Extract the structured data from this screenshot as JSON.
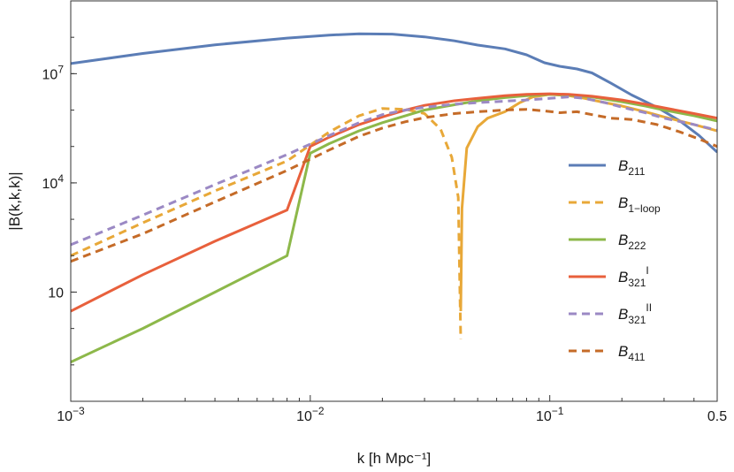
{
  "chart_data": {
    "type": "line",
    "title": "",
    "xlabel": "k [h Mpc⁻¹]",
    "ylabel": "|B(k,k,k)|",
    "xscale": "log",
    "yscale": "log",
    "xlim": [
      0.001,
      0.5
    ],
    "ylim": [
      0.01,
      1000000000
    ],
    "xticks": [
      {
        "value": 0.001,
        "base": "10",
        "exp": "−3"
      },
      {
        "value": 0.01,
        "base": "10",
        "exp": "−2"
      },
      {
        "value": 0.1,
        "base": "10",
        "exp": "−1"
      },
      {
        "value": 0.5,
        "base": "0.5",
        "exp": ""
      }
    ],
    "yticks": [
      {
        "value": 10,
        "base": "10",
        "exp": ""
      },
      {
        "value": 10000,
        "base": "10",
        "exp": "4"
      },
      {
        "value": 10000000,
        "base": "10",
        "exp": "7"
      }
    ],
    "legend_position": "center-right",
    "series": [
      {
        "name": "B211",
        "label_main": "B",
        "label_sub": "211",
        "label_sup": "",
        "color": "#5b7db6",
        "dash": false,
        "points": [
          [
            0.001,
            19000000.0
          ],
          [
            0.002,
            36000000.0
          ],
          [
            0.004,
            62000000.0
          ],
          [
            0.008,
            95000000.0
          ],
          [
            0.012,
            115000000.0
          ],
          [
            0.016,
            124000000.0
          ],
          [
            0.022,
            122000000.0
          ],
          [
            0.03,
            103000000.0
          ],
          [
            0.04,
            80000000.0
          ],
          [
            0.05,
            61000000.0
          ],
          [
            0.065,
            48000000.0
          ],
          [
            0.08,
            33000000.0
          ],
          [
            0.095,
            20000000.0
          ],
          [
            0.11,
            16000000.0
          ],
          [
            0.13,
            13500000.0
          ],
          [
            0.15,
            10500000.0
          ],
          [
            0.18,
            5500000.0
          ],
          [
            0.22,
            2600000.0
          ],
          [
            0.28,
            1200000.0
          ],
          [
            0.35,
            500000.0
          ],
          [
            0.42,
            200000.0
          ],
          [
            0.5,
            70000.0
          ]
        ]
      },
      {
        "name": "B1-loop",
        "label_main": "B",
        "label_sub": "1−loop",
        "label_sup": "",
        "color": "#e8a838",
        "dash": true,
        "points": [
          [
            0.001,
            100.0
          ],
          [
            0.002,
            800.0
          ],
          [
            0.004,
            6000.0
          ],
          [
            0.008,
            40000.0
          ],
          [
            0.012,
            250000.0
          ],
          [
            0.016,
            700000.0
          ],
          [
            0.02,
            1100000.0
          ],
          [
            0.025,
            1050000.0
          ],
          [
            0.03,
            800000.0
          ],
          [
            0.035,
            300000.0
          ],
          [
            0.039,
            50000.0
          ],
          [
            0.0415,
            4000.0
          ],
          [
            0.0425,
            0.5
          ]
        ]
      },
      {
        "name": "B1-loop",
        "label_main": "B",
        "label_sub": "1−loop",
        "label_sup": "",
        "color": "#e8a838",
        "dash": false,
        "legend": false,
        "points": [
          [
            0.0425,
            3.0
          ],
          [
            0.043,
            2000.0
          ],
          [
            0.045,
            90000.0
          ],
          [
            0.05,
            350000.0
          ],
          [
            0.055,
            600000.0
          ],
          [
            0.065,
            900000.0
          ],
          [
            0.075,
            1600000.0
          ],
          [
            0.085,
            2300000.0
          ],
          [
            0.1,
            2700000.0
          ],
          [
            0.12,
            2500000.0
          ],
          [
            0.14,
            2100000.0
          ],
          [
            0.17,
            1600000.0
          ],
          [
            0.2,
            1300000.0
          ],
          [
            0.25,
            900000.0
          ],
          [
            0.3,
            650000.0
          ],
          [
            0.4,
            400000.0
          ],
          [
            0.5,
            270000.0
          ]
        ]
      },
      {
        "name": "B222",
        "label_main": "B",
        "label_sub": "222",
        "label_sup": "",
        "color": "#8db84a",
        "dash": false,
        "points": [
          [
            0.001,
            0.12
          ],
          [
            0.002,
            1.0
          ],
          [
            0.004,
            10
          ],
          [
            0.008,
            100.0
          ],
          [
            0.01,
            65000.0
          ],
          [
            0.012,
            120000.0
          ],
          [
            0.016,
            270000.0
          ],
          [
            0.02,
            450000.0
          ],
          [
            0.025,
            700000.0
          ],
          [
            0.03,
            1000000.0
          ],
          [
            0.04,
            1400000.0
          ],
          [
            0.05,
            1800000.0
          ],
          [
            0.065,
            2200000.0
          ],
          [
            0.08,
            2500000.0
          ],
          [
            0.1,
            2700000.0
          ],
          [
            0.12,
            2600000.0
          ],
          [
            0.15,
            2300000.0
          ],
          [
            0.2,
            1700000.0
          ],
          [
            0.25,
            1300000.0
          ],
          [
            0.3,
            1000000.0
          ],
          [
            0.4,
            700000.0
          ],
          [
            0.5,
            500000.0
          ]
        ]
      },
      {
        "name": "B321I",
        "label_main": "B",
        "label_sub": "321",
        "label_sup": "I",
        "color": "#e8603c",
        "dash": false,
        "points": [
          [
            0.001,
            3.0
          ],
          [
            0.002,
            30
          ],
          [
            0.004,
            250.0
          ],
          [
            0.008,
            1800.0
          ],
          [
            0.01,
            100000.0
          ],
          [
            0.012,
            180000.0
          ],
          [
            0.016,
            400000.0
          ],
          [
            0.02,
            650000.0
          ],
          [
            0.025,
            1000000.0
          ],
          [
            0.03,
            1350000.0
          ],
          [
            0.04,
            1800000.0
          ],
          [
            0.05,
            2100000.0
          ],
          [
            0.065,
            2500000.0
          ],
          [
            0.08,
            2700000.0
          ],
          [
            0.1,
            2800000.0
          ],
          [
            0.12,
            2700000.0
          ],
          [
            0.15,
            2400000.0
          ],
          [
            0.2,
            1900000.0
          ],
          [
            0.25,
            1450000.0
          ],
          [
            0.3,
            1150000.0
          ],
          [
            0.4,
            800000.0
          ],
          [
            0.5,
            600000.0
          ]
        ]
      },
      {
        "name": "B321II",
        "label_main": "B",
        "label_sub": "321",
        "label_sup": "II",
        "color": "#9b89c4",
        "dash": true,
        "points": [
          [
            0.001,
            200.0
          ],
          [
            0.002,
            1300.0
          ],
          [
            0.004,
            9000.0
          ],
          [
            0.008,
            60000.0
          ],
          [
            0.012,
            200000.0
          ],
          [
            0.016,
            450000.0
          ],
          [
            0.02,
            750000.0
          ],
          [
            0.025,
            1000000.0
          ],
          [
            0.03,
            1200000.0
          ],
          [
            0.04,
            1450000.0
          ],
          [
            0.05,
            1600000.0
          ],
          [
            0.065,
            1750000.0
          ],
          [
            0.08,
            1900000.0
          ],
          [
            0.1,
            2100000.0
          ],
          [
            0.12,
            2300000.0
          ],
          [
            0.14,
            2100000.0
          ],
          [
            0.17,
            1600000.0
          ],
          [
            0.2,
            1200000.0
          ],
          [
            0.25,
            850000.0
          ],
          [
            0.3,
            600000.0
          ],
          [
            0.4,
            400000.0
          ],
          [
            0.5,
            280000.0
          ]
        ]
      },
      {
        "name": "B411",
        "label_main": "B",
        "label_sub": "411",
        "label_sup": "",
        "color": "#c56b28",
        "dash": true,
        "points": [
          [
            0.001,
            70
          ],
          [
            0.002,
            400.0
          ],
          [
            0.004,
            3000.0
          ],
          [
            0.008,
            22000.0
          ],
          [
            0.012,
            80000.0
          ],
          [
            0.016,
            190000.0
          ],
          [
            0.02,
            320000.0
          ],
          [
            0.025,
            480000.0
          ],
          [
            0.03,
            620000.0
          ],
          [
            0.04,
            800000.0
          ],
          [
            0.05,
            900000.0
          ],
          [
            0.065,
            1000000.0
          ],
          [
            0.08,
            1050000.0
          ],
          [
            0.095,
            950000.0
          ],
          [
            0.11,
            850000.0
          ],
          [
            0.13,
            900000.0
          ],
          [
            0.15,
            750000.0
          ],
          [
            0.18,
            600000.0
          ],
          [
            0.22,
            550000.0
          ],
          [
            0.28,
            400000.0
          ],
          [
            0.35,
            250000.0
          ],
          [
            0.42,
            160000.0
          ],
          [
            0.5,
            100000.0
          ]
        ]
      }
    ]
  }
}
